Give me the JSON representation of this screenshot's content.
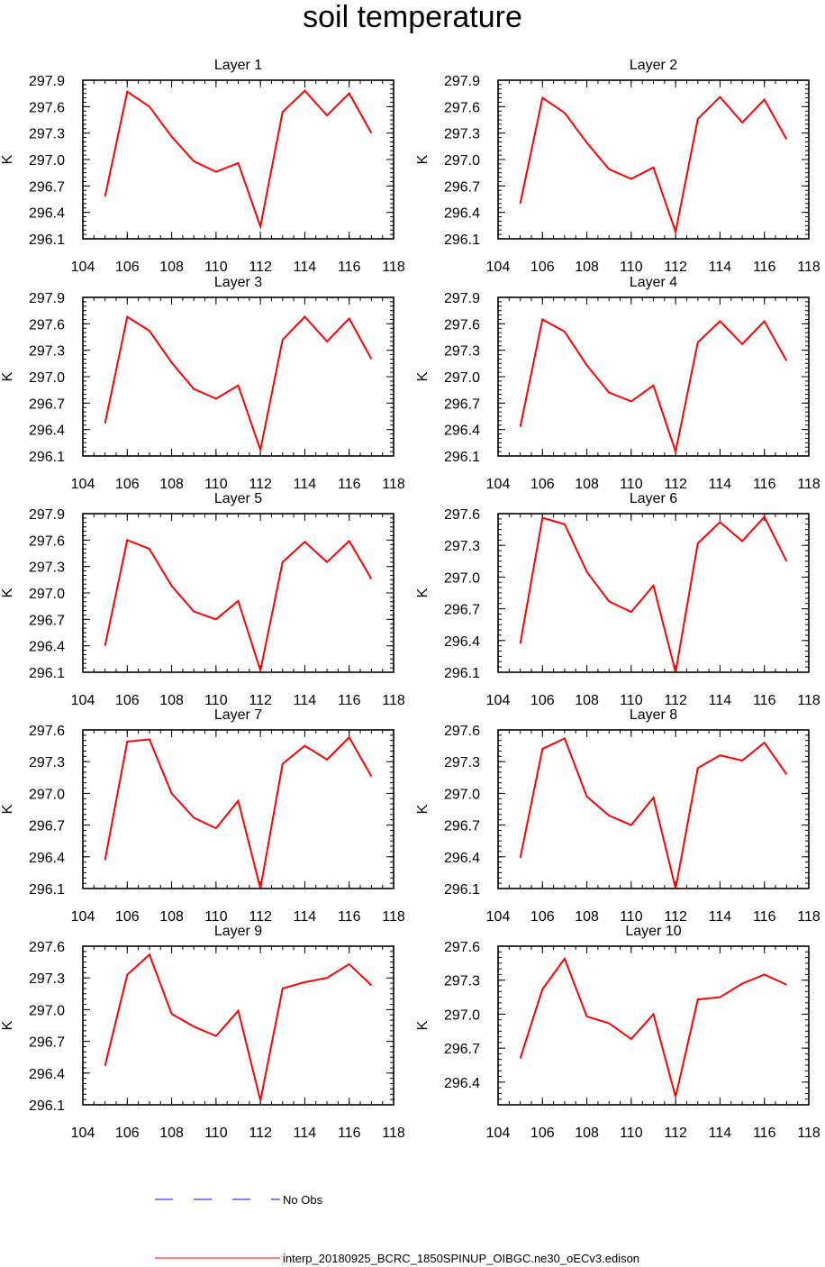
{
  "title": "soil temperature",
  "colors": {
    "model_line": "#ff0000",
    "obs_line": "#0000ff",
    "frame": "#000000"
  },
  "legend": {
    "obs_label": "No Obs",
    "model_label": "interp_20180925_BCRC_1850SPINUP_OIBGC.ne30_oECv3.edison"
  },
  "chart_data": [
    {
      "type": "line",
      "title": "Layer 1",
      "ylabel": "K",
      "xlim": [
        104,
        118
      ],
      "ylim": [
        296.1,
        297.9
      ],
      "xticks": [
        104,
        106,
        108,
        110,
        112,
        114,
        116,
        118
      ],
      "yticks": [
        296.1,
        296.4,
        296.7,
        297.0,
        297.3,
        297.6,
        297.9
      ],
      "x": [
        105,
        106,
        107,
        108,
        109,
        110,
        111,
        112,
        113,
        114,
        115,
        116,
        117
      ],
      "series": [
        {
          "values": [
            296.58,
            297.77,
            297.6,
            297.26,
            296.98,
            296.86,
            296.96,
            296.24,
            297.54,
            297.78,
            297.5,
            297.75,
            297.3
          ]
        }
      ]
    },
    {
      "type": "line",
      "title": "Layer 2",
      "ylabel": "K",
      "xlim": [
        104,
        118
      ],
      "ylim": [
        296.1,
        297.9
      ],
      "xticks": [
        104,
        106,
        108,
        110,
        112,
        114,
        116,
        118
      ],
      "yticks": [
        296.1,
        296.4,
        296.7,
        297.0,
        297.3,
        297.6,
        297.9
      ],
      "x": [
        105,
        106,
        107,
        108,
        109,
        110,
        111,
        112,
        113,
        114,
        115,
        116,
        117
      ],
      "series": [
        {
          "values": [
            296.5,
            297.7,
            297.53,
            297.19,
            296.89,
            296.78,
            296.91,
            296.18,
            297.46,
            297.71,
            297.42,
            297.68,
            297.23
          ]
        }
      ]
    },
    {
      "type": "line",
      "title": "Layer 3",
      "ylabel": "K",
      "xlim": [
        104,
        118
      ],
      "ylim": [
        296.1,
        297.9
      ],
      "xticks": [
        104,
        106,
        108,
        110,
        112,
        114,
        116,
        118
      ],
      "yticks": [
        296.1,
        296.4,
        296.7,
        297.0,
        297.3,
        297.6,
        297.9
      ],
      "x": [
        105,
        106,
        107,
        108,
        109,
        110,
        111,
        112,
        113,
        114,
        115,
        116,
        117
      ],
      "series": [
        {
          "values": [
            296.47,
            297.68,
            297.52,
            297.16,
            296.86,
            296.75,
            296.9,
            296.17,
            297.42,
            297.68,
            297.4,
            297.66,
            297.2
          ]
        }
      ]
    },
    {
      "type": "line",
      "title": "Layer 4",
      "ylabel": "K",
      "xlim": [
        104,
        118
      ],
      "ylim": [
        296.1,
        297.9
      ],
      "xticks": [
        104,
        106,
        108,
        110,
        112,
        114,
        116,
        118
      ],
      "yticks": [
        296.1,
        296.4,
        296.7,
        297.0,
        297.3,
        297.6,
        297.9
      ],
      "x": [
        105,
        106,
        107,
        108,
        109,
        110,
        111,
        112,
        113,
        114,
        115,
        116,
        117
      ],
      "series": [
        {
          "values": [
            296.43,
            297.65,
            297.51,
            297.13,
            296.82,
            296.72,
            296.9,
            296.15,
            297.39,
            297.63,
            297.37,
            297.63,
            297.18
          ]
        }
      ]
    },
    {
      "type": "line",
      "title": "Layer 5",
      "ylabel": "K",
      "xlim": [
        104,
        118
      ],
      "ylim": [
        296.1,
        297.9
      ],
      "xticks": [
        104,
        106,
        108,
        110,
        112,
        114,
        116,
        118
      ],
      "yticks": [
        296.1,
        296.4,
        296.7,
        297.0,
        297.3,
        297.6,
        297.9
      ],
      "x": [
        105,
        106,
        107,
        108,
        109,
        110,
        111,
        112,
        113,
        114,
        115,
        116,
        117
      ],
      "series": [
        {
          "values": [
            296.4,
            297.6,
            297.5,
            297.08,
            296.79,
            296.7,
            296.91,
            296.12,
            297.35,
            297.58,
            297.35,
            297.59,
            297.16
          ]
        }
      ]
    },
    {
      "type": "line",
      "title": "Layer 6",
      "ylabel": "K",
      "xlim": [
        104,
        118
      ],
      "ylim": [
        296.1,
        297.6
      ],
      "xticks": [
        104,
        106,
        108,
        110,
        112,
        114,
        116,
        118
      ],
      "yticks": [
        296.1,
        296.4,
        296.7,
        297.0,
        297.3,
        297.6
      ],
      "x": [
        105,
        106,
        107,
        108,
        109,
        110,
        111,
        112,
        113,
        114,
        115,
        116,
        117
      ],
      "series": [
        {
          "values": [
            296.37,
            297.56,
            297.5,
            297.05,
            296.77,
            296.67,
            296.92,
            296.1,
            297.32,
            297.52,
            297.34,
            297.57,
            297.15
          ]
        }
      ]
    },
    {
      "type": "line",
      "title": "Layer 7",
      "ylabel": "K",
      "xlim": [
        104,
        118
      ],
      "ylim": [
        296.1,
        297.6
      ],
      "xticks": [
        104,
        106,
        108,
        110,
        112,
        114,
        116,
        118
      ],
      "yticks": [
        296.1,
        296.4,
        296.7,
        297.0,
        297.3,
        297.6
      ],
      "x": [
        105,
        106,
        107,
        108,
        109,
        110,
        111,
        112,
        113,
        114,
        115,
        116,
        117
      ],
      "series": [
        {
          "values": [
            296.37,
            297.49,
            297.51,
            297.0,
            296.77,
            296.67,
            296.93,
            296.1,
            297.28,
            297.45,
            297.32,
            297.53,
            297.16
          ]
        }
      ]
    },
    {
      "type": "line",
      "title": "Layer 8",
      "ylabel": "K",
      "xlim": [
        104,
        118
      ],
      "ylim": [
        296.1,
        297.6
      ],
      "xticks": [
        104,
        106,
        108,
        110,
        112,
        114,
        116,
        118
      ],
      "yticks": [
        296.1,
        296.4,
        296.7,
        297.0,
        297.3,
        297.6
      ],
      "x": [
        105,
        106,
        107,
        108,
        109,
        110,
        111,
        112,
        113,
        114,
        115,
        116,
        117
      ],
      "series": [
        {
          "values": [
            296.39,
            297.42,
            297.52,
            296.97,
            296.79,
            296.7,
            296.96,
            296.1,
            297.24,
            297.36,
            297.31,
            297.48,
            297.18
          ]
        }
      ]
    },
    {
      "type": "line",
      "title": "Layer 9",
      "ylabel": "K",
      "xlim": [
        104,
        118
      ],
      "ylim": [
        296.1,
        297.6
      ],
      "xticks": [
        104,
        106,
        108,
        110,
        112,
        114,
        116,
        118
      ],
      "yticks": [
        296.1,
        296.4,
        296.7,
        297.0,
        297.3,
        297.6
      ],
      "x": [
        105,
        106,
        107,
        108,
        109,
        110,
        111,
        112,
        113,
        114,
        115,
        116,
        117
      ],
      "series": [
        {
          "values": [
            296.47,
            297.33,
            297.52,
            296.96,
            296.84,
            296.75,
            296.99,
            296.14,
            297.2,
            297.26,
            297.3,
            297.43,
            297.23
          ]
        }
      ]
    },
    {
      "type": "line",
      "title": "Layer 10",
      "ylabel": "K",
      "xlim": [
        104,
        118
      ],
      "ylim": [
        296.2,
        297.6
      ],
      "xticks": [
        104,
        106,
        108,
        110,
        112,
        114,
        116,
        118
      ],
      "yticks": [
        296.4,
        296.7,
        297.0,
        297.3,
        297.6
      ],
      "x": [
        105,
        106,
        107,
        108,
        109,
        110,
        111,
        112,
        113,
        114,
        115,
        116,
        117
      ],
      "series": [
        {
          "values": [
            296.61,
            297.22,
            297.49,
            296.98,
            296.92,
            296.78,
            297.0,
            296.27,
            297.13,
            297.15,
            297.27,
            297.35,
            297.26
          ]
        }
      ]
    }
  ]
}
